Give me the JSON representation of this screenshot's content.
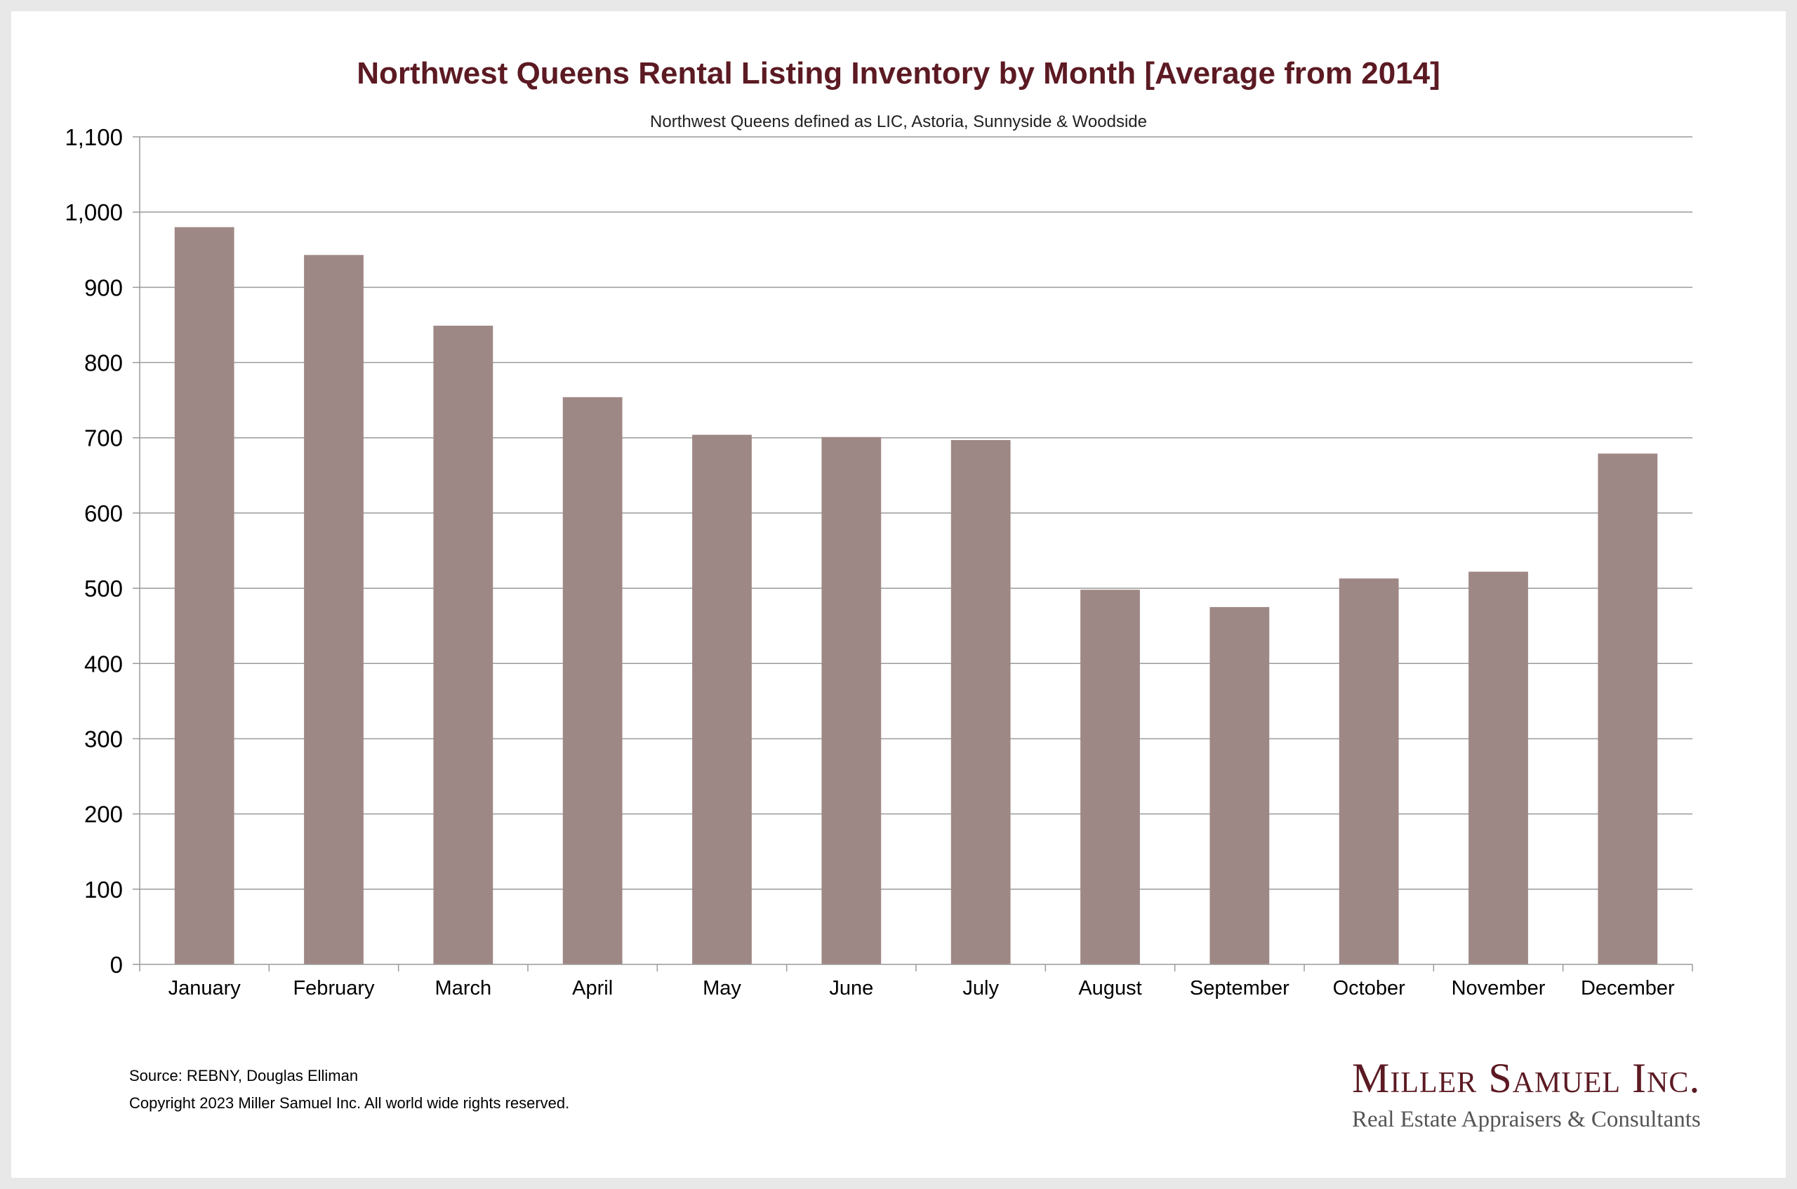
{
  "chart_data": {
    "type": "bar",
    "title": "Northwest Queens Rental Listing Inventory by Month [Average from 2014]",
    "subtitle": "Northwest Queens defined as LIC, Astoria, Sunnyside & Woodside",
    "categories": [
      "January",
      "February",
      "March",
      "April",
      "May",
      "June",
      "July",
      "August",
      "September",
      "October",
      "November",
      "December"
    ],
    "values": [
      980,
      943,
      849,
      754,
      704,
      701,
      697,
      498,
      475,
      513,
      522,
      679
    ],
    "ylim": [
      0,
      1100
    ],
    "yticks": [
      0,
      100,
      200,
      300,
      400,
      500,
      600,
      700,
      800,
      900,
      1000,
      1100
    ],
    "ytick_labels": [
      "0",
      "100",
      "200",
      "300",
      "400",
      "500",
      "600",
      "700",
      "800",
      "900",
      "1,000",
      "1,100"
    ],
    "xlabel": "",
    "ylabel": "",
    "grid": true,
    "legend": "none",
    "bar_color": "#9e8886",
    "title_color": "#5c1a23"
  },
  "footer": {
    "source": "Source: REBNY, Douglas Elliman",
    "copyright": "Copyright 2023 Miller Samuel Inc.  All world wide rights reserved."
  },
  "logo": {
    "name": "Miller Samuel Inc.",
    "tagline": "Real Estate Appraisers & Consultants"
  }
}
